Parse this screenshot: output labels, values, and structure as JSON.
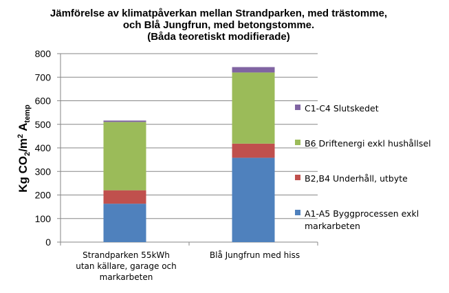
{
  "chart_data": {
    "type": "bar",
    "stacked": true,
    "title_lines": [
      "Jämförelse av klimatpåverkan mellan Strandparken, med trästomme,",
      "och Blå Jungfrun, med betongstomme.",
      "(Båda teoretiskt modifierade)"
    ],
    "ylabel": {
      "prefix": "Kg CO",
      "sub1": "2",
      "mid": "/m",
      "sup": "2",
      "space": " A",
      "sub2": "temp"
    },
    "categories": [
      [
        "Strandparken 55kWh",
        "utan källare, garage och",
        "markarbeten"
      ],
      [
        "Blå Jungfrun med hiss"
      ]
    ],
    "series": [
      {
        "name": "A1-A5 Byggprocessen exkl markarbeten",
        "legend_lines": [
          "A1-A5 Byggprocessen exkl",
          "markarbeten"
        ],
        "color": "#4f81bd",
        "values": [
          163,
          358
        ]
      },
      {
        "name": "B2,B4 Underhåll, utbyte",
        "legend_lines": [
          "B2,B4 Underhåll, utbyte"
        ],
        "color": "#c0504d",
        "values": [
          57,
          60
        ]
      },
      {
        "name": "B6 Driftenergi exkl hushållsel",
        "legend_lines": [
          "B6 Driftenergi exkl hushållsel"
        ],
        "color": "#9bbb59",
        "values": [
          290,
          302
        ]
      },
      {
        "name": "C1-C4 Slutskedet",
        "legend_lines": [
          "C1-C4 Slutskedet"
        ],
        "color": "#8064a2",
        "values": [
          6,
          23
        ]
      }
    ],
    "ylim": [
      0,
      800
    ],
    "yticks": [
      "0",
      "100",
      "200",
      "300",
      "400",
      "500",
      "600",
      "700",
      "800"
    ],
    "grid": true,
    "legend_position": "right"
  }
}
